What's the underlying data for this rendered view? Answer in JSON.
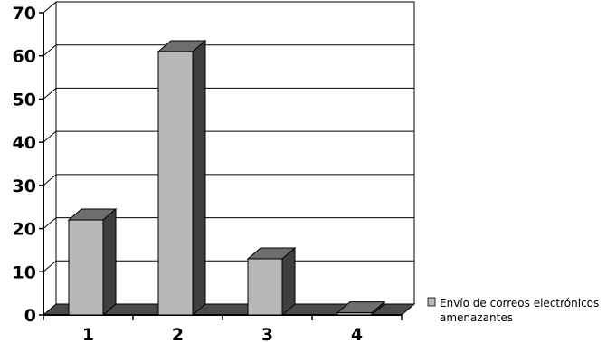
{
  "chart_data": {
    "type": "bar",
    "style": "3d",
    "categories": [
      "1",
      "2",
      "3",
      "4"
    ],
    "series": [
      {
        "name": "Envío de correos electrónicos amenazantes",
        "values": [
          22,
          61,
          13,
          0.5
        ]
      }
    ],
    "title": "",
    "xlabel": "",
    "ylabel": "",
    "ylim": [
      0,
      70
    ],
    "yticks": [
      "0",
      "10",
      "20",
      "30",
      "40",
      "50",
      "60",
      "70"
    ],
    "grid": true,
    "legend_position": "right",
    "colors": {
      "bar_front": "#b8b8b8",
      "bar_top": "#6e6e6e",
      "bar_side": "#3f3f3f",
      "floor": "#4a4a4a",
      "gridline": "#000000"
    }
  },
  "legend": {
    "line1": "Envío de correos electrónicos",
    "line2": "amenazantes"
  }
}
